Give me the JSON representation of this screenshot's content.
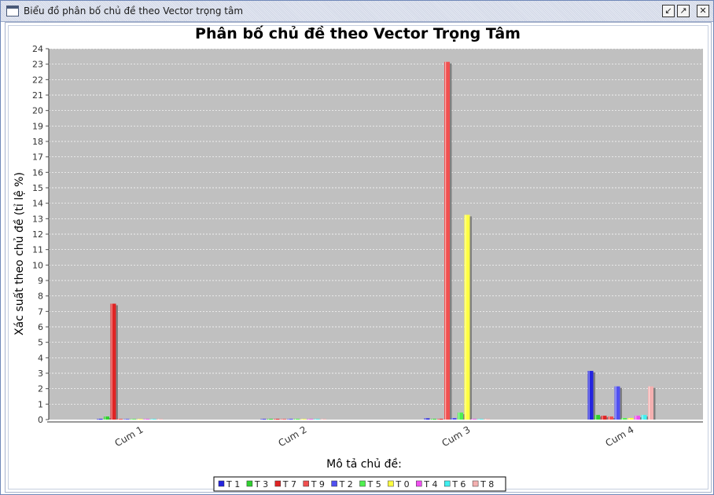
{
  "window": {
    "title": "Biểu đồ phân bố chủ đề theo Vector trọng tâm",
    "buttons": [
      "restore",
      "maximize",
      "close"
    ]
  },
  "chart_data": {
    "type": "bar",
    "title": "Phân bố chủ đề theo Vector Trọng Tâm",
    "xlabel": "Mô tả chủ đề:",
    "ylabel": "Xác suất theo chủ đề (tỉ lệ %)",
    "ylim": [
      0,
      24
    ],
    "yticks": [
      0,
      1,
      2,
      3,
      4,
      5,
      6,
      7,
      8,
      9,
      10,
      11,
      12,
      13,
      14,
      15,
      16,
      17,
      18,
      19,
      20,
      21,
      22,
      23,
      24
    ],
    "grid": true,
    "legend_position": "bottom",
    "categories": [
      "Cum 1",
      "Cum 2",
      "Cum 3",
      "Cum 4"
    ],
    "series": [
      {
        "name": "T 1",
        "color": "#2424e0",
        "values": [
          0.05,
          0.0,
          0.08,
          3.15
        ]
      },
      {
        "name": "T 3",
        "color": "#30d030",
        "values": [
          0.2,
          0.05,
          0.05,
          0.3
        ]
      },
      {
        "name": "T 7",
        "color": "#e02424",
        "values": [
          7.5,
          0.05,
          0.05,
          0.25
        ]
      },
      {
        "name": "T 9",
        "color": "#f05050",
        "values": [
          0.05,
          0.0,
          23.15,
          0.2
        ]
      },
      {
        "name": "T 2",
        "color": "#5050f0",
        "values": [
          0.0,
          0.05,
          0.1,
          2.15
        ]
      },
      {
        "name": "T 5",
        "color": "#50f050",
        "values": [
          0.0,
          0.05,
          0.45,
          0.1
        ]
      },
      {
        "name": "T 0",
        "color": "#ffff40",
        "values": [
          0.0,
          0.0,
          13.25,
          0.1
        ]
      },
      {
        "name": "T 4",
        "color": "#f050f0",
        "values": [
          0.0,
          0.0,
          0.0,
          0.25
        ]
      },
      {
        "name": "T 6",
        "color": "#40f0f0",
        "values": [
          0.0,
          0.0,
          0.0,
          0.3
        ]
      },
      {
        "name": "T 8",
        "color": "#f4b0b0",
        "values": [
          0.0,
          0.0,
          0.0,
          2.15
        ]
      }
    ]
  }
}
